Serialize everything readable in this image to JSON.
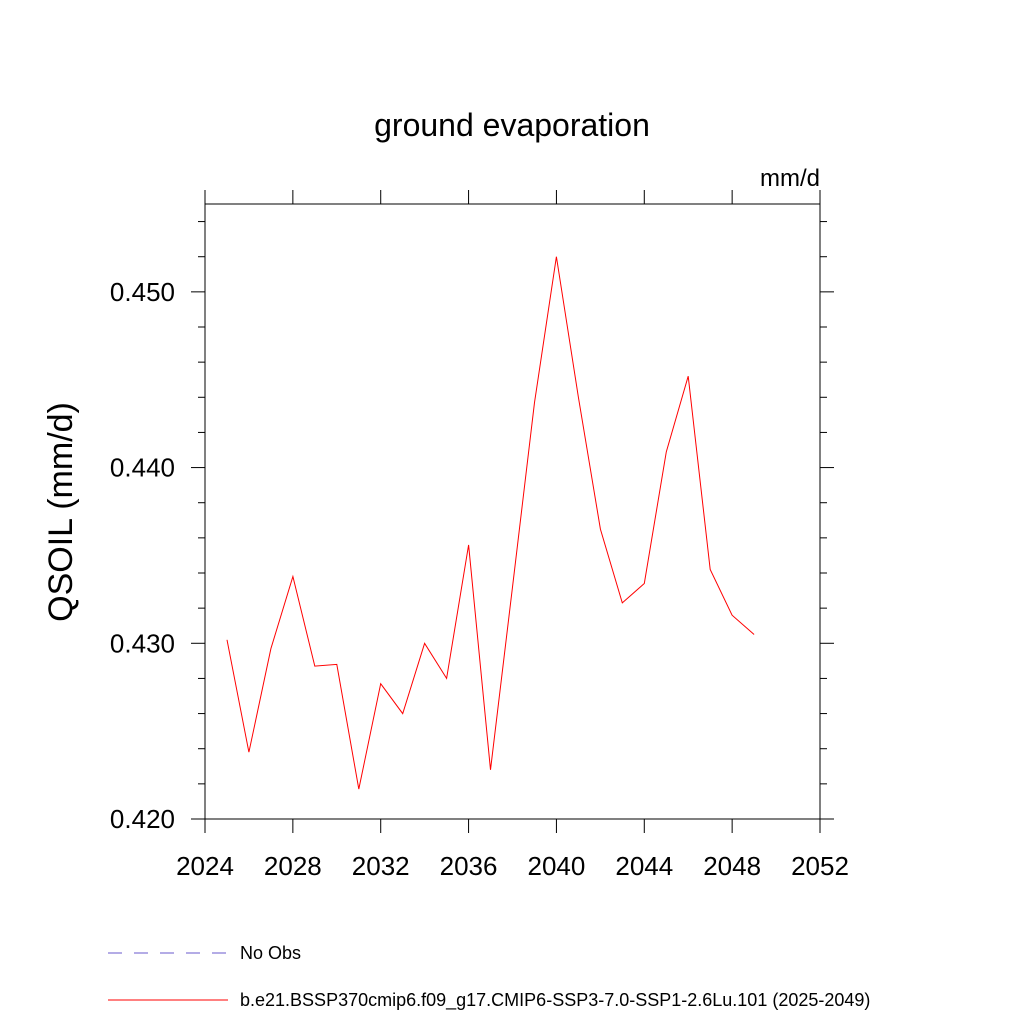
{
  "chart_data": {
    "type": "line",
    "title": "ground evaporation",
    "units": "mm/d",
    "ylabel": "QSOIL  (mm/d)",
    "xlabel": "",
    "xlim": [
      2024,
      2052
    ],
    "ylim": [
      0.42,
      0.455
    ],
    "x_ticks": [
      2024,
      2028,
      2032,
      2036,
      2040,
      2044,
      2048,
      2052
    ],
    "x_tick_labels": [
      "2024",
      "2028",
      "2032",
      "2036",
      "2040",
      "2044",
      "2048",
      "2052"
    ],
    "y_ticks": [
      0.42,
      0.43,
      0.44,
      0.45
    ],
    "y_tick_labels": [
      "0.420",
      "0.430",
      "0.440",
      "0.450"
    ],
    "grid": false,
    "legend_position": "bottom",
    "series": [
      {
        "name": "b.e21.BSSP370cmip6.f09_g17.CMIP6-SSP3-7.0-SSP1-2.6Lu.101 (2025-2049)",
        "color": "#ff0000",
        "style": "solid",
        "x": [
          2025,
          2026,
          2027,
          2028,
          2029,
          2030,
          2031,
          2032,
          2033,
          2034,
          2035,
          2036,
          2037,
          2038,
          2039,
          2040,
          2041,
          2042,
          2043,
          2044,
          2045,
          2046,
          2047,
          2048,
          2049
        ],
        "y": [
          0.4302,
          0.4238,
          0.4297,
          0.4338,
          0.4287,
          0.4288,
          0.4217,
          0.4277,
          0.426,
          0.43,
          0.428,
          0.4356,
          0.4228,
          0.4332,
          0.4437,
          0.452,
          0.444,
          0.4365,
          0.4323,
          0.4334,
          0.4409,
          0.4452,
          0.4342,
          0.4316,
          0.4305
        ]
      }
    ],
    "legend": [
      {
        "label": "No Obs",
        "color": "#6a5acd",
        "style": "dashed"
      },
      {
        "label": "b.e21.BSSP370cmip6.f09_g17.CMIP6-SSP3-7.0-SSP1-2.6Lu.101 (2025-2049)",
        "color": "#ff0000",
        "style": "solid"
      }
    ]
  }
}
